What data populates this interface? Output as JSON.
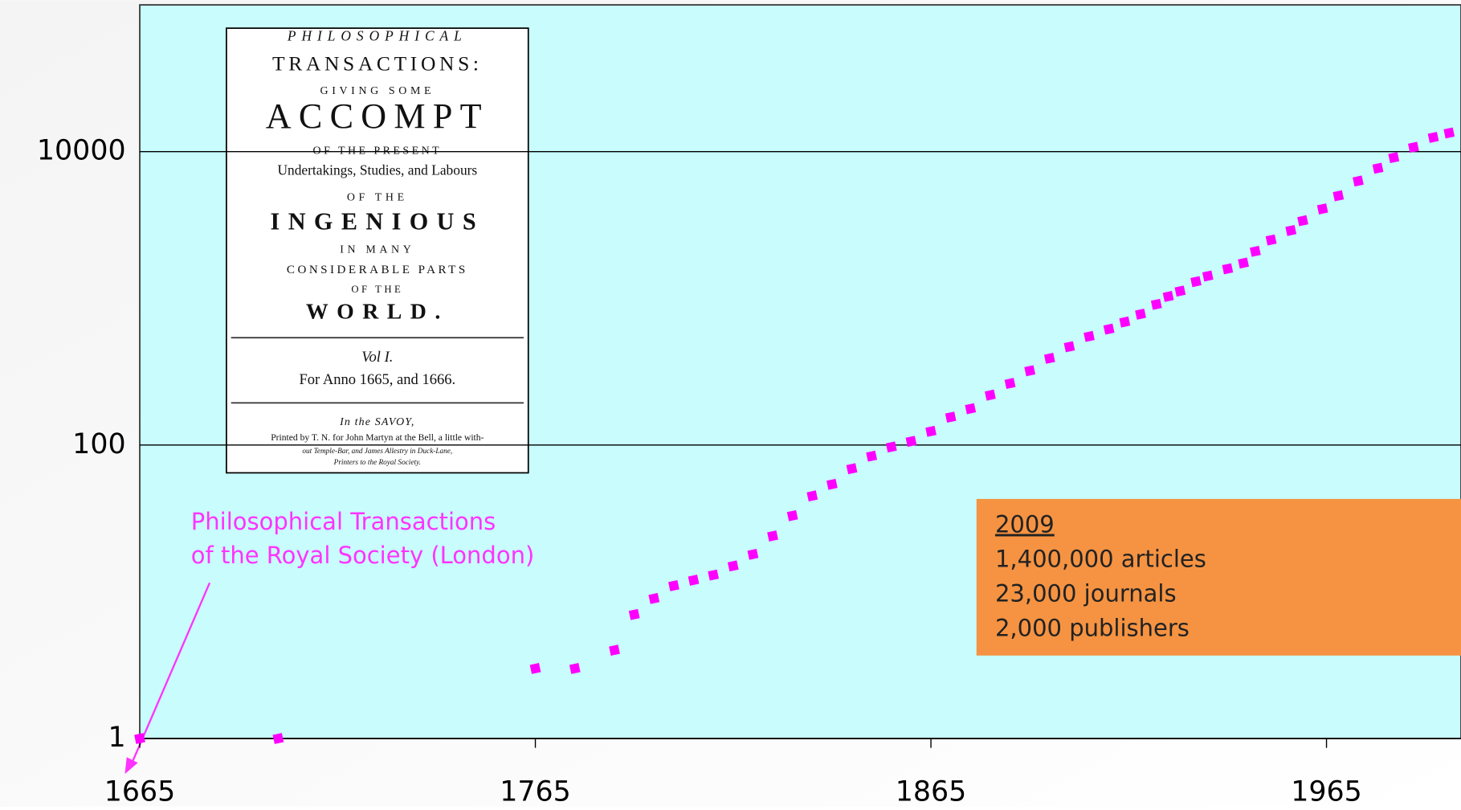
{
  "chart_data": {
    "type": "scatter",
    "x": [
      1665,
      1700,
      1765,
      1775,
      1785,
      1790,
      1795,
      1800,
      1805,
      1810,
      1815,
      1820,
      1825,
      1830,
      1835,
      1840,
      1845,
      1850,
      1855,
      1860,
      1865,
      1870,
      1875,
      1880,
      1885,
      1890,
      1895,
      1900,
      1905,
      1910,
      1914,
      1918,
      1922,
      1925,
      1928,
      1932,
      1935,
      1940,
      1944,
      1947,
      1951,
      1956,
      1959,
      1964,
      1968,
      1973,
      1978,
      1982,
      1987,
      1992,
      1996
    ],
    "values": [
      1,
      1,
      3,
      3,
      4,
      7,
      9,
      11,
      12,
      13,
      15,
      18,
      24,
      33,
      45,
      54,
      69,
      84,
      97,
      106,
      124,
      155,
      177,
      219,
      263,
      321,
      390,
      468,
      550,
      617,
      690,
      780,
      910,
      1030,
      1120,
      1300,
      1420,
      1590,
      1740,
      2090,
      2500,
      2900,
      3380,
      4070,
      5000,
      6300,
      7700,
      9100,
      10700,
      12500,
      13400
    ],
    "color": "#ff00ff",
    "xlim": [
      1665,
      1999
    ],
    "xticks": [
      1665,
      1765,
      1865,
      1965
    ],
    "ylim": [
      1,
      100000
    ],
    "yticks": [
      1,
      100,
      10000
    ],
    "log_y": true,
    "grid": true,
    "annotations": {
      "callout": [
        "Philosophical Transactions",
        "of the Royal Society (London)"
      ],
      "box": [
        "2009",
        "1,400,000 articles",
        "23,000 journals",
        "2,000 publishers"
      ],
      "inset": [
        "PHILOSOPHICAL",
        "TRANSACTIONS:",
        "GIVING SOME",
        "ACCOMPT",
        "OF THE PRESENT",
        "Undertakings, Studies, and Labours",
        "OF THE",
        "INGENIOUS",
        "IN MANY",
        "CONSIDERABLE PARTS",
        "OF THE",
        "WORLD.",
        "Vol I.",
        "For Anno 1665, and 1666.",
        "In the SAVOY,",
        "Printed by T. N. for John Martyn at the Bell, a little with-",
        "out Temple-Bar, and James Allestry in Duck-Lane,",
        "Printers to the Royal Society."
      ]
    }
  }
}
